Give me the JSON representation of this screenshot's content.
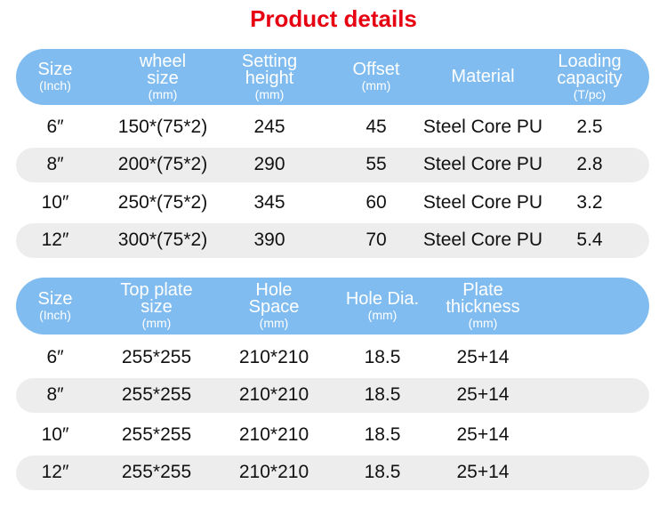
{
  "header": {
    "title": "Product details"
  },
  "tables": [
    {
      "headers": [
        {
          "lines": [
            "Size"
          ],
          "unit": "(Inch)"
        },
        {
          "lines": [
            "wheel",
            "size"
          ],
          "unit": "(mm)"
        },
        {
          "lines": [
            "Setting",
            "height"
          ],
          "unit": "(mm)"
        },
        {
          "lines": [
            "Offset"
          ],
          "unit": "(mm)"
        },
        {
          "lines": [
            "Material"
          ]
        },
        {
          "lines": [
            "Loading",
            "capacity"
          ],
          "unit": "(T/pc)"
        }
      ],
      "rows": [
        [
          "6″",
          "150*(75*2)",
          "245",
          "45",
          "Steel Core PU",
          "2.5"
        ],
        [
          "8″",
          "200*(75*2)",
          "290",
          "55",
          "Steel Core PU",
          "2.8"
        ],
        [
          "10″",
          "250*(75*2)",
          "345",
          "60",
          "Steel Core PU",
          "3.2"
        ],
        [
          "12″",
          "300*(75*2)",
          "390",
          "70",
          "Steel Core PU",
          "5.4"
        ]
      ]
    },
    {
      "headers": [
        {
          "lines": [
            "Size"
          ],
          "unit": "(Inch)"
        },
        {
          "lines": [
            "Top plate",
            "size"
          ],
          "unit": "(mm)"
        },
        {
          "lines": [
            "Hole",
            "Space"
          ],
          "unit": "(mm)"
        },
        {
          "lines": [
            "Hole Dia."
          ],
          "unit": "(mm)"
        },
        {
          "lines": [
            "Plate",
            "thickness"
          ],
          "unit": "(mm)"
        }
      ],
      "rows": [
        [
          "6″",
          "255*255",
          "210*210",
          "18.5",
          "25+14"
        ],
        [
          "8″",
          "255*255",
          "210*210",
          "18.5",
          "25+14"
        ],
        [
          "10″",
          "255*255",
          "210*210",
          "18.5",
          "25+14"
        ],
        [
          "12″",
          "255*255",
          "210*210",
          "18.5",
          "25+14"
        ]
      ]
    }
  ]
}
